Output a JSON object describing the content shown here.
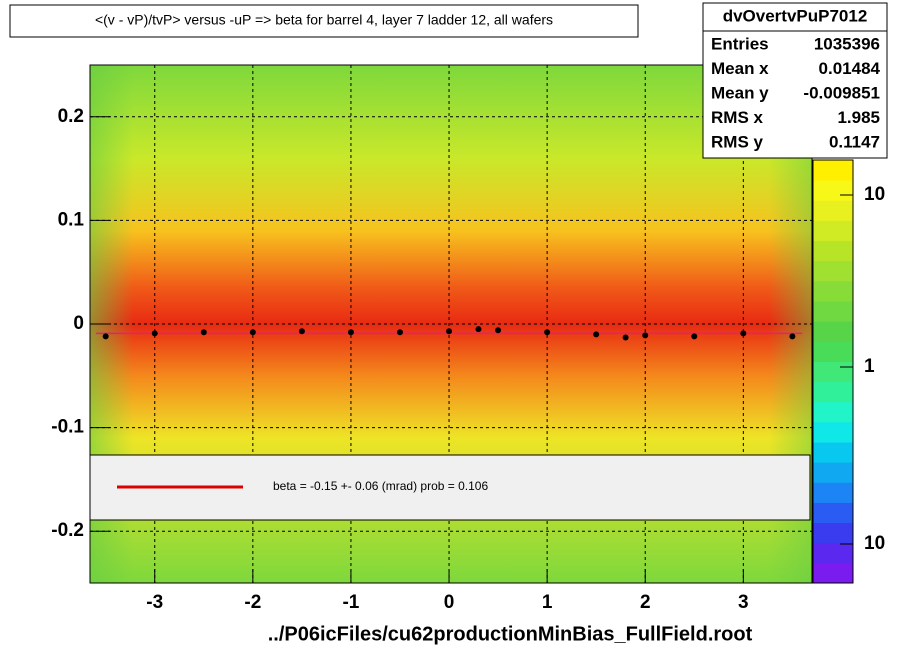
{
  "chart_data": {
    "type": "heatmap",
    "title": "<(v - vP)/tvP> versus  -uP => beta for barrel 4, layer 7 ladder 12, all wafers",
    "x_label": "../P06icFiles/cu62productionMinBias_FullField.root",
    "xlim": [
      -3.66,
      3.7
    ],
    "ylim": [
      -0.25,
      0.25
    ],
    "xticks": [
      -3,
      -2,
      -1,
      0,
      1,
      2,
      3
    ],
    "yticks": [
      -0.2,
      -0.1,
      0,
      0.1,
      0.2
    ],
    "grid": true,
    "colorbar_labels": [
      "10",
      "1",
      "10"
    ],
    "profile": {
      "color": "#000000",
      "x": [
        -3.5,
        -3.0,
        -2.5,
        -2.0,
        -1.5,
        -1.0,
        -0.5,
        0.0,
        0.3,
        0.5,
        1.0,
        1.5,
        1.8,
        2.0,
        2.5,
        3.0,
        3.5
      ],
      "values": [
        -0.012,
        -0.009,
        -0.008,
        -0.008,
        -0.007,
        -0.008,
        -0.008,
        -0.007,
        -0.005,
        -0.006,
        -0.008,
        -0.01,
        -0.013,
        -0.011,
        -0.012,
        -0.009,
        -0.012
      ]
    },
    "fit": {
      "color": "#e0208a",
      "x": [
        -3.6,
        3.6
      ],
      "values": [
        -0.009,
        -0.009
      ]
    },
    "legend": {
      "color": "#dd0000",
      "text": "beta =   -0.15 +-  0.06 (mrad) prob = 0.106"
    },
    "stats": {
      "name": "dvOvertvPuP7012",
      "rows": [
        {
          "label": "Entries",
          "value": 1035396
        },
        {
          "label": "Mean x",
          "value": 0.01484
        },
        {
          "label": "Mean y",
          "value": -0.009851
        },
        {
          "label": "RMS x",
          "value": 1.985
        },
        {
          "label": "RMS y",
          "value": 0.1147
        }
      ]
    }
  }
}
